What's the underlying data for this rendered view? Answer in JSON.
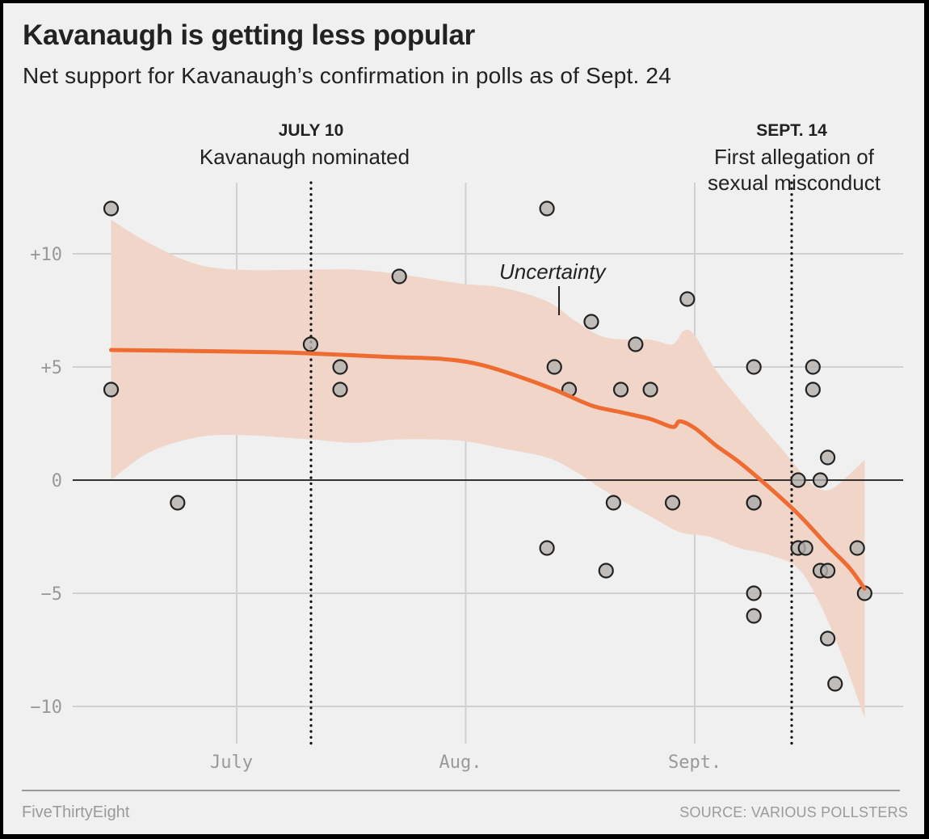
{
  "chart_data": {
    "type": "scatter",
    "title": "Kavanaugh is getting less popular",
    "subtitle": "Net support for Kavanaugh’s confirmation in polls as of Sept. 24",
    "xlabel": "",
    "ylabel": "",
    "x_unit": "days since July 1, 2018",
    "xlim": [
      -17,
      85
    ],
    "ylim": [
      -10,
      12
    ],
    "grid": true,
    "y_ticks": [
      {
        "value": 10,
        "label": "+10"
      },
      {
        "value": 5,
        "label": "+5"
      },
      {
        "value": 0,
        "label": "0"
      },
      {
        "value": -5,
        "label": "−5"
      },
      {
        "value": -10,
        "label": "−10"
      }
    ],
    "x_ticks": [
      {
        "value": 0,
        "label": "July"
      },
      {
        "value": 31,
        "label": "Aug."
      },
      {
        "value": 62,
        "label": "Sept."
      }
    ],
    "annotations": [
      {
        "x": 10,
        "date": "JULY 10",
        "lines": [
          "Kavanaugh nominated"
        ]
      },
      {
        "x": 75,
        "date": "SEPT. 14",
        "lines": [
          "First allegation of",
          "sexual misconduct"
        ]
      }
    ],
    "band_label": "Uncertainty",
    "series": [
      {
        "name": "Polls",
        "points": [
          {
            "x": -17,
            "y": 12
          },
          {
            "x": -17,
            "y": 4
          },
          {
            "x": -8,
            "y": -1
          },
          {
            "x": 10,
            "y": 6
          },
          {
            "x": 14,
            "y": 5
          },
          {
            "x": 14,
            "y": 4
          },
          {
            "x": 22,
            "y": 9
          },
          {
            "x": 42,
            "y": 12
          },
          {
            "x": 42,
            "y": -3
          },
          {
            "x": 43,
            "y": 5
          },
          {
            "x": 45,
            "y": 4
          },
          {
            "x": 48,
            "y": 7
          },
          {
            "x": 50,
            "y": -4
          },
          {
            "x": 51,
            "y": -1
          },
          {
            "x": 52,
            "y": 4
          },
          {
            "x": 54,
            "y": 6
          },
          {
            "x": 56,
            "y": 4
          },
          {
            "x": 59,
            "y": -1
          },
          {
            "x": 61,
            "y": 8
          },
          {
            "x": 70,
            "y": 5
          },
          {
            "x": 70,
            "y": -1
          },
          {
            "x": 70,
            "y": -1
          },
          {
            "x": 70,
            "y": -5
          },
          {
            "x": 70,
            "y": -6
          },
          {
            "x": 76,
            "y": 0
          },
          {
            "x": 76,
            "y": -3
          },
          {
            "x": 77,
            "y": -3
          },
          {
            "x": 78,
            "y": 5
          },
          {
            "x": 78,
            "y": 4
          },
          {
            "x": 79,
            "y": 0
          },
          {
            "x": 79,
            "y": -4
          },
          {
            "x": 80,
            "y": 1
          },
          {
            "x": 80,
            "y": -4
          },
          {
            "x": 80,
            "y": -7
          },
          {
            "x": 81,
            "y": -9
          },
          {
            "x": 84,
            "y": -3
          },
          {
            "x": 85,
            "y": -5
          }
        ]
      },
      {
        "name": "Trend",
        "type": "line",
        "points": [
          {
            "x": -17,
            "y": 5.75
          },
          {
            "x": -5,
            "y": 5.7
          },
          {
            "x": 5,
            "y": 5.65
          },
          {
            "x": 10,
            "y": 5.6
          },
          {
            "x": 20,
            "y": 5.45
          },
          {
            "x": 28,
            "y": 5.35
          },
          {
            "x": 33,
            "y": 5.1
          },
          {
            "x": 38,
            "y": 4.6
          },
          {
            "x": 43,
            "y": 4.0
          },
          {
            "x": 48,
            "y": 3.3
          },
          {
            "x": 52,
            "y": 3.0
          },
          {
            "x": 56,
            "y": 2.7
          },
          {
            "x": 59,
            "y": 2.35
          },
          {
            "x": 60,
            "y": 2.6
          },
          {
            "x": 62,
            "y": 2.3
          },
          {
            "x": 65,
            "y": 1.5
          },
          {
            "x": 68,
            "y": 0.8
          },
          {
            "x": 72,
            "y": -0.3
          },
          {
            "x": 76,
            "y": -1.5
          },
          {
            "x": 80,
            "y": -2.9
          },
          {
            "x": 83,
            "y": -3.9
          },
          {
            "x": 85,
            "y": -4.8
          }
        ]
      },
      {
        "name": "Uncertainty",
        "type": "band",
        "upper": [
          {
            "x": -17,
            "y": 11.5
          },
          {
            "x": -12,
            "y": 10.5
          },
          {
            "x": -6,
            "y": 9.6
          },
          {
            "x": 0,
            "y": 9.3
          },
          {
            "x": 10,
            "y": 9.3
          },
          {
            "x": 16,
            "y": 9.3
          },
          {
            "x": 22,
            "y": 9.1
          },
          {
            "x": 30,
            "y": 8.7
          },
          {
            "x": 36,
            "y": 8.5
          },
          {
            "x": 42,
            "y": 7.9
          },
          {
            "x": 46,
            "y": 7.0
          },
          {
            "x": 50,
            "y": 6.3
          },
          {
            "x": 56,
            "y": 6.2
          },
          {
            "x": 59,
            "y": 6.0
          },
          {
            "x": 60.5,
            "y": 6.6
          },
          {
            "x": 62,
            "y": 6.4
          },
          {
            "x": 65,
            "y": 4.8
          },
          {
            "x": 70,
            "y": 2.8
          },
          {
            "x": 74,
            "y": 1.3
          },
          {
            "x": 77,
            "y": 0.1
          },
          {
            "x": 79,
            "y": -0.4
          },
          {
            "x": 81,
            "y": -0.3
          },
          {
            "x": 85,
            "y": 0.9
          }
        ],
        "lower": [
          {
            "x": -17,
            "y": 0
          },
          {
            "x": -12,
            "y": 1.2
          },
          {
            "x": -6,
            "y": 1.85
          },
          {
            "x": 0,
            "y": 2.0
          },
          {
            "x": 10,
            "y": 1.8
          },
          {
            "x": 16,
            "y": 1.65
          },
          {
            "x": 22,
            "y": 1.8
          },
          {
            "x": 30,
            "y": 1.75
          },
          {
            "x": 36,
            "y": 1.4
          },
          {
            "x": 42,
            "y": 1.0
          },
          {
            "x": 46,
            "y": 0.35
          },
          {
            "x": 50,
            "y": -0.5
          },
          {
            "x": 56,
            "y": -1.6
          },
          {
            "x": 60,
            "y": -2.3
          },
          {
            "x": 64,
            "y": -2.5
          },
          {
            "x": 68,
            "y": -3.0
          },
          {
            "x": 72,
            "y": -3.3
          },
          {
            "x": 76,
            "y": -3.9
          },
          {
            "x": 79,
            "y": -5.5
          },
          {
            "x": 82,
            "y": -7.8
          },
          {
            "x": 85,
            "y": -10.5
          }
        ]
      }
    ]
  },
  "colors": {
    "background": "#f0f0f0",
    "band": "#f0d5c8",
    "trend": "#ee6b32",
    "point_fill": "#b4b0ae",
    "point_stroke": "#222222",
    "grid": "#d0d0d0",
    "zero_line": "#333333"
  },
  "footer": {
    "brand": "FiveThirtyEight",
    "source": "SOURCE: VARIOUS POLLSTERS"
  }
}
